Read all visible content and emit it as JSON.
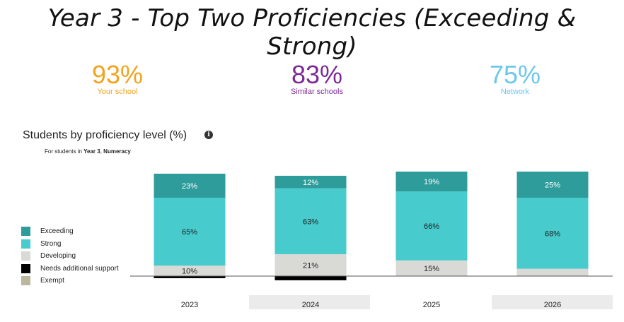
{
  "slide": {
    "title": "Year 3 - Top Two Proficiencies (Exceeding & Strong)"
  },
  "kpis": [
    {
      "value": "93%",
      "label": "Your school",
      "color": "#f0a31c"
    },
    {
      "value": "83%",
      "label": "Similar schools",
      "color": "#7d2a96"
    },
    {
      "value": "75%",
      "label": "Network",
      "color": "#6cc7ec"
    }
  ],
  "chart_header": {
    "title": "Students by proficiency level (%)",
    "info_icon": "info-icon",
    "subtitle_prefix": "For students in ",
    "subtitle_year": "Year 3",
    "subtitle_sep": ", ",
    "subtitle_domain": "Numeracy"
  },
  "chart_data": {
    "type": "bar",
    "stacked": true,
    "categories": [
      "2023",
      "2024",
      "2025",
      "2026"
    ],
    "series": [
      {
        "name": "Exceeding",
        "color": "#2e9c9a",
        "values": [
          23,
          12,
          19,
          25
        ],
        "labels": [
          "23%",
          "12%",
          "19%",
          "25%"
        ]
      },
      {
        "name": "Strong",
        "color": "#47cbcd",
        "values": [
          65,
          63,
          66,
          68
        ],
        "labels": [
          "65%",
          "63%",
          "66%",
          "68%"
        ]
      },
      {
        "name": "Developing",
        "color": "#d9d9d6",
        "values": [
          10,
          21,
          15,
          7
        ],
        "labels": [
          "10%",
          "21%",
          "15%",
          ""
        ]
      },
      {
        "name": "Needs additional support",
        "color": "#000000",
        "values": [
          2,
          4,
          0,
          0
        ],
        "labels": [
          "",
          "",
          "",
          ""
        ]
      },
      {
        "name": "Exempt",
        "color": "#bab79e",
        "values": [
          0,
          0,
          0,
          0
        ],
        "labels": [
          "",
          "",
          "",
          ""
        ]
      }
    ],
    "ylim": [
      0,
      100
    ],
    "legend": "left",
    "grid": false
  }
}
